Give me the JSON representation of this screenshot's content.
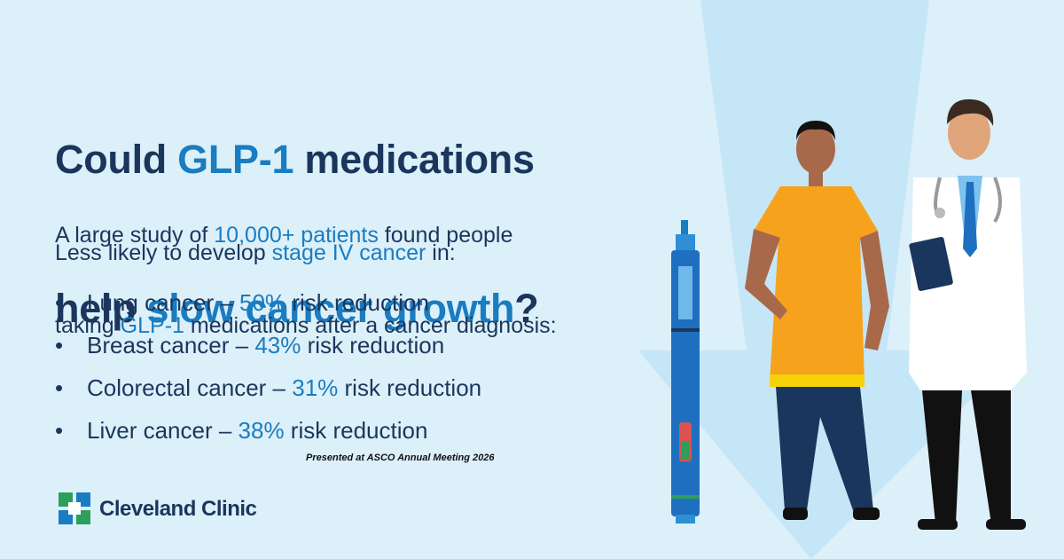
{
  "headline": {
    "line1": [
      "Could ",
      "GLP-1",
      " medications"
    ],
    "line2": [
      "help ",
      "slow cancer growth",
      "?"
    ]
  },
  "intro": {
    "line1": [
      "A large study of ",
      "10,000+ patients",
      " found people"
    ],
    "line2": [
      "taking ",
      "GLP-1",
      " medications after a cancer diagnosis:"
    ]
  },
  "subhead": [
    "Less likely to develop ",
    "stage IV cancer",
    " in:"
  ],
  "findings": [
    [
      "Lung cancer – ",
      "50%",
      " risk reduction"
    ],
    [
      "Breast cancer – ",
      "43%",
      " risk reduction"
    ],
    [
      "Colorectal cancer – ",
      "31%",
      " risk reduction"
    ],
    [
      "Liver cancer – ",
      "38%",
      " risk reduction"
    ]
  ],
  "citation": "Presented at ASCO Annual Meeting 2026",
  "logo": "Cleveland Clinic"
}
